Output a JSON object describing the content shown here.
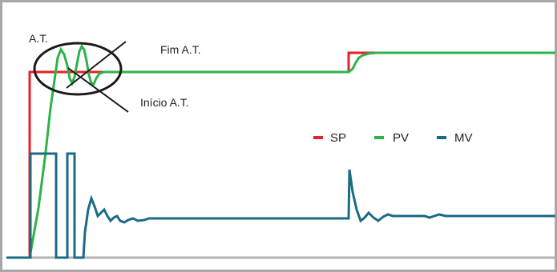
{
  "colors": {
    "sp": "#e42229",
    "pv": "#2db34a",
    "mv": "#1a6b86",
    "frame": "#a7a7a7",
    "axis": "#b3b3b3",
    "annotation": "#1a1a1a"
  },
  "chart_data": {
    "type": "line",
    "title": "",
    "xlabel": "",
    "ylabel": "",
    "grid": false,
    "legend_position": "center-right",
    "series": [
      {
        "name": "SP",
        "color": "#e42229"
      },
      {
        "name": "PV",
        "color": "#2db34a"
      },
      {
        "name": "MV",
        "color": "#1a6b86"
      }
    ],
    "annotations": {
      "at_label": "A.T.",
      "fim_label": "Fim A.T.",
      "inicio_label": "Início A.T."
    }
  }
}
